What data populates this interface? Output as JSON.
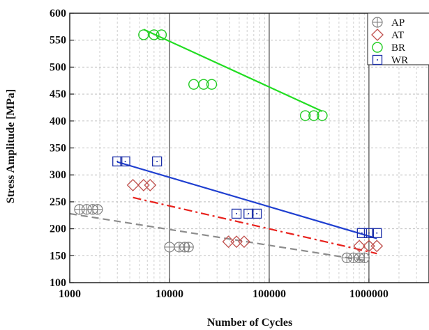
{
  "chart_data": {
    "type": "scatter",
    "title": "",
    "xlabel": "Number of Cycles",
    "ylabel": "Stress Amplitude [MPa]",
    "xscale": "log",
    "xlim": [
      1000,
      4000000
    ],
    "ylim": [
      100,
      600
    ],
    "grid": true,
    "legend_position": "top-right",
    "x_ticks": [
      1000,
      10000,
      100000,
      1000000
    ],
    "x_tick_labels": [
      "1000",
      "10000",
      "100000",
      "1000000"
    ],
    "y_ticks": [
      100,
      150,
      200,
      250,
      300,
      350,
      400,
      450,
      500,
      550,
      600
    ],
    "y_tick_labels": [
      "100",
      "150",
      "200",
      "250",
      "300",
      "350",
      "400",
      "450",
      "500",
      "550",
      "600"
    ],
    "series": [
      {
        "name": "AP",
        "marker": "circle-plus",
        "color": "#808080",
        "points": [
          [
            1250,
            236
          ],
          [
            1480,
            236
          ],
          [
            1700,
            236
          ],
          [
            1900,
            236
          ],
          [
            10000,
            166
          ],
          [
            12500,
            166
          ],
          [
            14200,
            166
          ],
          [
            15500,
            166
          ],
          [
            600000,
            146
          ],
          [
            700000,
            146
          ],
          [
            800000,
            146
          ],
          [
            900000,
            146
          ]
        ],
        "fit": {
          "style": "dashed",
          "color": "#8c8c8c",
          "from": [
            1000,
            228
          ],
          "to": [
            1000000,
            140
          ]
        }
      },
      {
        "name": "AT",
        "marker": "diamond",
        "color": "#c0504d",
        "points": [
          [
            4300,
            281
          ],
          [
            5500,
            281
          ],
          [
            6400,
            281
          ],
          [
            39000,
            176
          ],
          [
            47000,
            176
          ],
          [
            56000,
            176
          ],
          [
            800000,
            168
          ],
          [
            1000000,
            168
          ],
          [
            1200000,
            168
          ]
        ],
        "fit": {
          "style": "dash-dot",
          "color": "#e8211c",
          "from": [
            4300,
            258
          ],
          "to": [
            1200000,
            154
          ]
        }
      },
      {
        "name": "BR",
        "marker": "circle",
        "color": "#22cc22",
        "points": [
          [
            5500,
            560
          ],
          [
            7000,
            560
          ],
          [
            8300,
            560
          ],
          [
            17500,
            468
          ],
          [
            22000,
            468
          ],
          [
            26500,
            468
          ],
          [
            230000,
            410
          ],
          [
            280000,
            410
          ],
          [
            340000,
            410
          ]
        ],
        "fit": {
          "style": "solid",
          "color": "#22dd22",
          "from": [
            5500,
            570
          ],
          "to": [
            340000,
            418
          ]
        }
      },
      {
        "name": "WR",
        "marker": "square-dot",
        "color": "#1c2fa8",
        "points": [
          [
            3000,
            325
          ],
          [
            3600,
            325
          ],
          [
            7500,
            325
          ],
          [
            47000,
            228
          ],
          [
            62000,
            228
          ],
          [
            75000,
            228
          ],
          [
            850000,
            192
          ],
          [
            1000000,
            192
          ],
          [
            1200000,
            192
          ]
        ],
        "fit": {
          "style": "solid",
          "color": "#1f3fd0",
          "from": [
            3000,
            324
          ],
          "to": [
            1200000,
            182
          ]
        }
      }
    ]
  }
}
